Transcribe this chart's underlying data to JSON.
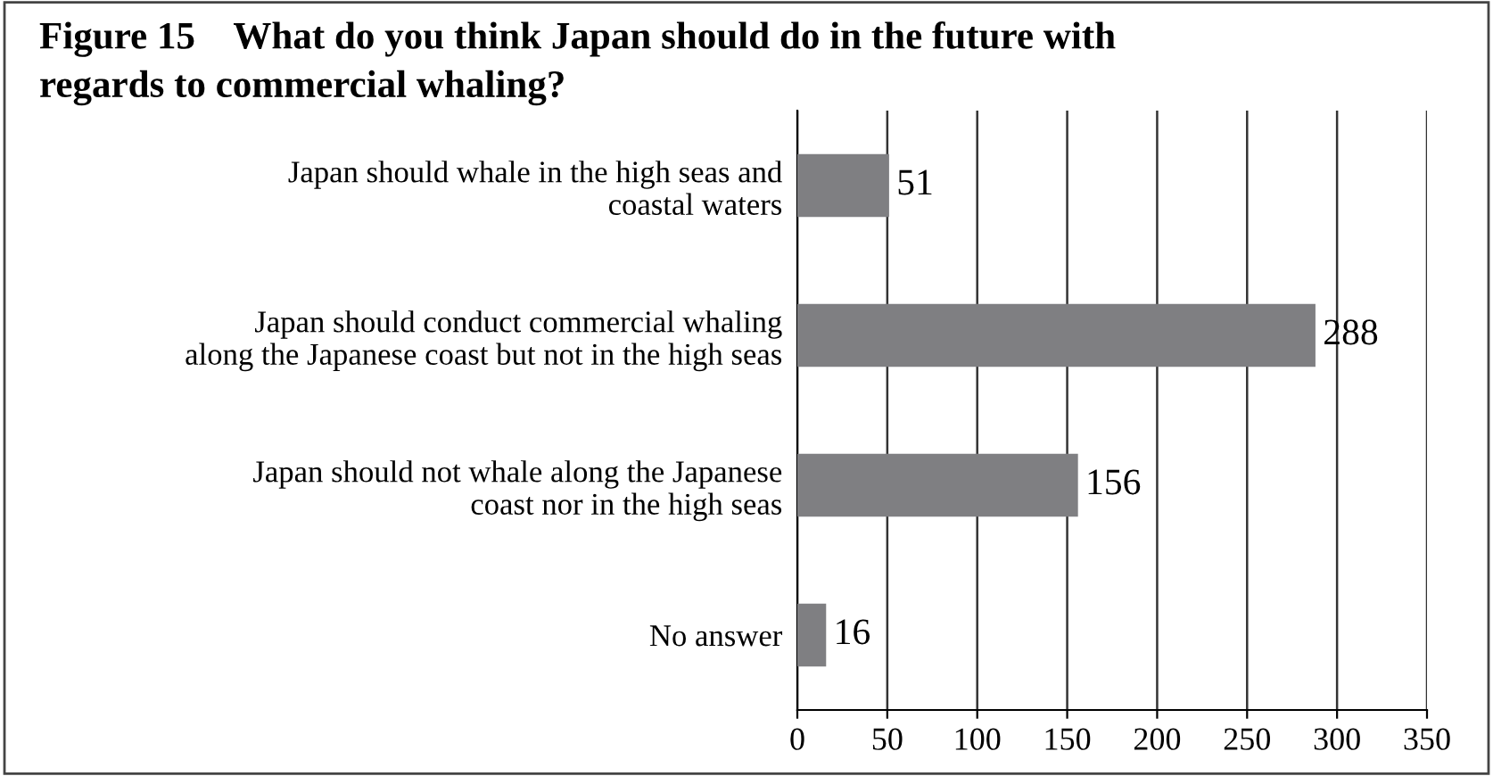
{
  "chart_data": {
    "type": "bar",
    "orientation": "horizontal",
    "title": "Figure 15    What do you think Japan should do in the future with\nregards to commercial whaling?",
    "categories": [
      "Japan should whale in the high seas and\ncoastal waters",
      "Japan should conduct commercial whaling\nalong the Japanese coast but not in the high seas",
      "Japan should not whale along the Japanese\ncoast nor in the high seas",
      "No answer"
    ],
    "values": [
      51,
      288,
      156,
      16
    ],
    "color": "#7f7f82",
    "xlim": [
      0,
      350
    ],
    "xticks": [
      0,
      50,
      100,
      150,
      200,
      250,
      300,
      350
    ],
    "grid": "x",
    "data_labels": true
  }
}
